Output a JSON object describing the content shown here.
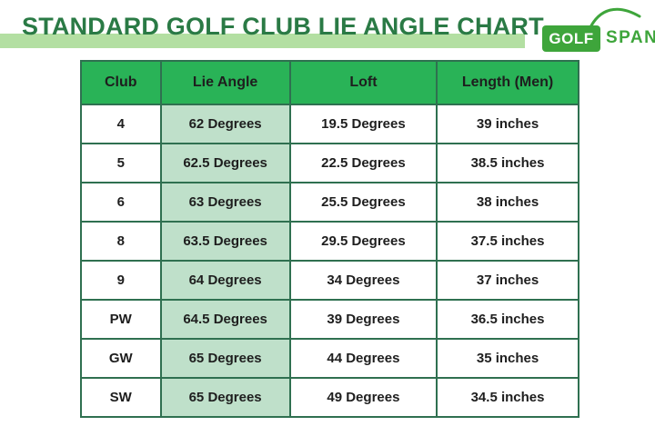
{
  "title": "STANDARD GOLF CLUB LIE ANGLE CHART",
  "logo": {
    "part1": "GOLF",
    "part2": "SPAN"
  },
  "colors": {
    "title-text-green": "#2a7a45",
    "title-bar-green": "#b3dfa2",
    "logo-green": "#3ea53b",
    "header-green": "#29b357",
    "lie-cell-green": "#bfe0ca",
    "border-green": "#2f7050",
    "cell-text": "#1e1e1e"
  },
  "table": {
    "headers": [
      "Club",
      "Lie Angle",
      "Loft",
      "Length (Men)"
    ],
    "rows": [
      [
        "4",
        "62 Degrees",
        "19.5 Degrees",
        "39 inches"
      ],
      [
        "5",
        "62.5 Degrees",
        "22.5 Degrees",
        "38.5 inches"
      ],
      [
        "6",
        "63 Degrees",
        "25.5 Degrees",
        "38 inches"
      ],
      [
        "8",
        "63.5 Degrees",
        "29.5 Degrees",
        "37.5 inches"
      ],
      [
        "9",
        "64 Degrees",
        "34 Degrees",
        "37 inches"
      ],
      [
        "PW",
        "64.5 Degrees",
        "39 Degrees",
        "36.5 inches"
      ],
      [
        "GW",
        "65 Degrees",
        "44 Degrees",
        "35 inches"
      ],
      [
        "SW",
        "65 Degrees",
        "49 Degrees",
        "34.5 inches"
      ]
    ]
  },
  "chart_data": {
    "type": "table",
    "title": "STANDARD GOLF CLUB LIE ANGLE CHART",
    "columns": [
      "Club",
      "Lie Angle",
      "Loft",
      "Length (Men)"
    ],
    "rows": [
      [
        "4",
        "62 Degrees",
        "19.5 Degrees",
        "39 inches"
      ],
      [
        "5",
        "62.5 Degrees",
        "22.5 Degrees",
        "38.5 inches"
      ],
      [
        "6",
        "63 Degrees",
        "25.5 Degrees",
        "38 inches"
      ],
      [
        "8",
        "63.5 Degrees",
        "29.5 Degrees",
        "37.5 inches"
      ],
      [
        "9",
        "64 Degrees",
        "34 Degrees",
        "37 inches"
      ],
      [
        "PW",
        "64.5 Degrees",
        "39 Degrees",
        "36.5 inches"
      ],
      [
        "GW",
        "65 Degrees",
        "44 Degrees",
        "35 inches"
      ],
      [
        "SW",
        "65 Degrees",
        "49 Degrees",
        "34.5 inches"
      ]
    ]
  }
}
